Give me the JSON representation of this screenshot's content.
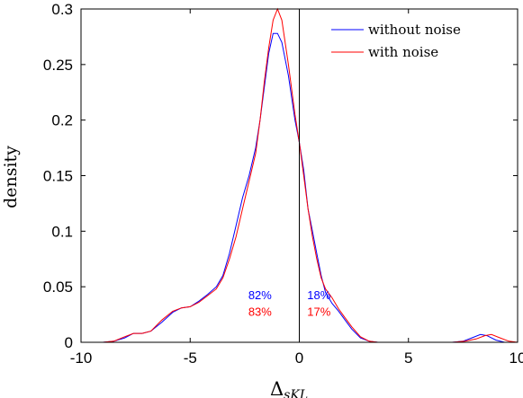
{
  "chart_data": {
    "type": "line",
    "title": "",
    "xlabel": "Δ",
    "xlabel_sub": "sKL",
    "ylabel": "density",
    "xlim": [
      -10,
      10
    ],
    "ylim": [
      0,
      0.3
    ],
    "x_ticks": [
      -10,
      -5,
      0,
      5,
      10
    ],
    "x_tick_labels": [
      "-10",
      "-5",
      "0",
      "5",
      "10"
    ],
    "y_ticks": [
      0,
      0.05,
      0.1,
      0.15,
      0.2,
      0.25,
      0.3
    ],
    "y_tick_labels": [
      "0",
      "0.05",
      "0.1",
      "0.15",
      "0.2",
      "0.25",
      "0.3"
    ],
    "grid": false,
    "legend_position": "top-right",
    "vertical_line_x": 0,
    "series": [
      {
        "name": "without noise",
        "color": "#0000ff",
        "points": [
          [
            -10,
            0
          ],
          [
            -9,
            0
          ],
          [
            -8.5,
            0.001
          ],
          [
            -8,
            0.004
          ],
          [
            -7.6,
            0.008
          ],
          [
            -7.2,
            0.008
          ],
          [
            -6.8,
            0.01
          ],
          [
            -6.3,
            0.018
          ],
          [
            -5.8,
            0.027
          ],
          [
            -5.4,
            0.031
          ],
          [
            -5,
            0.032
          ],
          [
            -4.6,
            0.037
          ],
          [
            -4.2,
            0.043
          ],
          [
            -3.8,
            0.05
          ],
          [
            -3.5,
            0.06
          ],
          [
            -3.2,
            0.08
          ],
          [
            -2.9,
            0.105
          ],
          [
            -2.6,
            0.13
          ],
          [
            -2.3,
            0.15
          ],
          [
            -2,
            0.175
          ],
          [
            -1.8,
            0.2
          ],
          [
            -1.6,
            0.23
          ],
          [
            -1.4,
            0.26
          ],
          [
            -1.2,
            0.278
          ],
          [
            -1,
            0.278
          ],
          [
            -0.8,
            0.27
          ],
          [
            -0.5,
            0.24
          ],
          [
            -0.2,
            0.2
          ],
          [
            0,
            0.18
          ],
          [
            0.2,
            0.155
          ],
          [
            0.4,
            0.12
          ],
          [
            0.6,
            0.1
          ],
          [
            0.8,
            0.08
          ],
          [
            1,
            0.06
          ],
          [
            1.2,
            0.045
          ],
          [
            1.5,
            0.035
          ],
          [
            1.8,
            0.028
          ],
          [
            2.1,
            0.02
          ],
          [
            2.4,
            0.012
          ],
          [
            2.8,
            0.004
          ],
          [
            3.2,
            0.001
          ],
          [
            3.6,
            0
          ],
          [
            7,
            0
          ],
          [
            7.5,
            0.001
          ],
          [
            7.9,
            0.004
          ],
          [
            8.3,
            0.007
          ],
          [
            8.6,
            0.006
          ],
          [
            9,
            0.002
          ],
          [
            9.4,
            0
          ],
          [
            10,
            0
          ]
        ]
      },
      {
        "name": "with noise",
        "color": "#ff0000",
        "points": [
          [
            -10,
            0
          ],
          [
            -9,
            0
          ],
          [
            -8.5,
            0.001
          ],
          [
            -8,
            0.005
          ],
          [
            -7.6,
            0.008
          ],
          [
            -7.2,
            0.008
          ],
          [
            -6.8,
            0.01
          ],
          [
            -6.3,
            0.02
          ],
          [
            -5.8,
            0.028
          ],
          [
            -5.4,
            0.031
          ],
          [
            -5,
            0.032
          ],
          [
            -4.6,
            0.036
          ],
          [
            -4.2,
            0.042
          ],
          [
            -3.8,
            0.048
          ],
          [
            -3.5,
            0.058
          ],
          [
            -3.2,
            0.075
          ],
          [
            -2.9,
            0.095
          ],
          [
            -2.6,
            0.12
          ],
          [
            -2.3,
            0.145
          ],
          [
            -2,
            0.17
          ],
          [
            -1.8,
            0.2
          ],
          [
            -1.6,
            0.235
          ],
          [
            -1.4,
            0.265
          ],
          [
            -1.2,
            0.29
          ],
          [
            -1,
            0.3
          ],
          [
            -0.8,
            0.29
          ],
          [
            -0.5,
            0.25
          ],
          [
            -0.2,
            0.205
          ],
          [
            0,
            0.18
          ],
          [
            0.2,
            0.15
          ],
          [
            0.4,
            0.12
          ],
          [
            0.6,
            0.095
          ],
          [
            0.8,
            0.075
          ],
          [
            1,
            0.058
          ],
          [
            1.2,
            0.048
          ],
          [
            1.5,
            0.04
          ],
          [
            1.8,
            0.03
          ],
          [
            2.1,
            0.022
          ],
          [
            2.4,
            0.014
          ],
          [
            2.8,
            0.005
          ],
          [
            3.2,
            0.001
          ],
          [
            3.6,
            0
          ],
          [
            7,
            0
          ],
          [
            7.6,
            0.001
          ],
          [
            8.1,
            0.003
          ],
          [
            8.5,
            0.006
          ],
          [
            8.8,
            0.007
          ],
          [
            9.2,
            0.004
          ],
          [
            9.6,
            0.001
          ],
          [
            10,
            0
          ]
        ]
      }
    ],
    "annotations": [
      {
        "text": "82%",
        "x": -1.8,
        "y": 0.039,
        "color": "#0000ff"
      },
      {
        "text": "18%",
        "x": 0.9,
        "y": 0.039,
        "color": "#0000ff"
      },
      {
        "text": "83%",
        "x": -1.8,
        "y": 0.024,
        "color": "#ff0000"
      },
      {
        "text": "17%",
        "x": 0.9,
        "y": 0.024,
        "color": "#ff0000"
      }
    ]
  }
}
